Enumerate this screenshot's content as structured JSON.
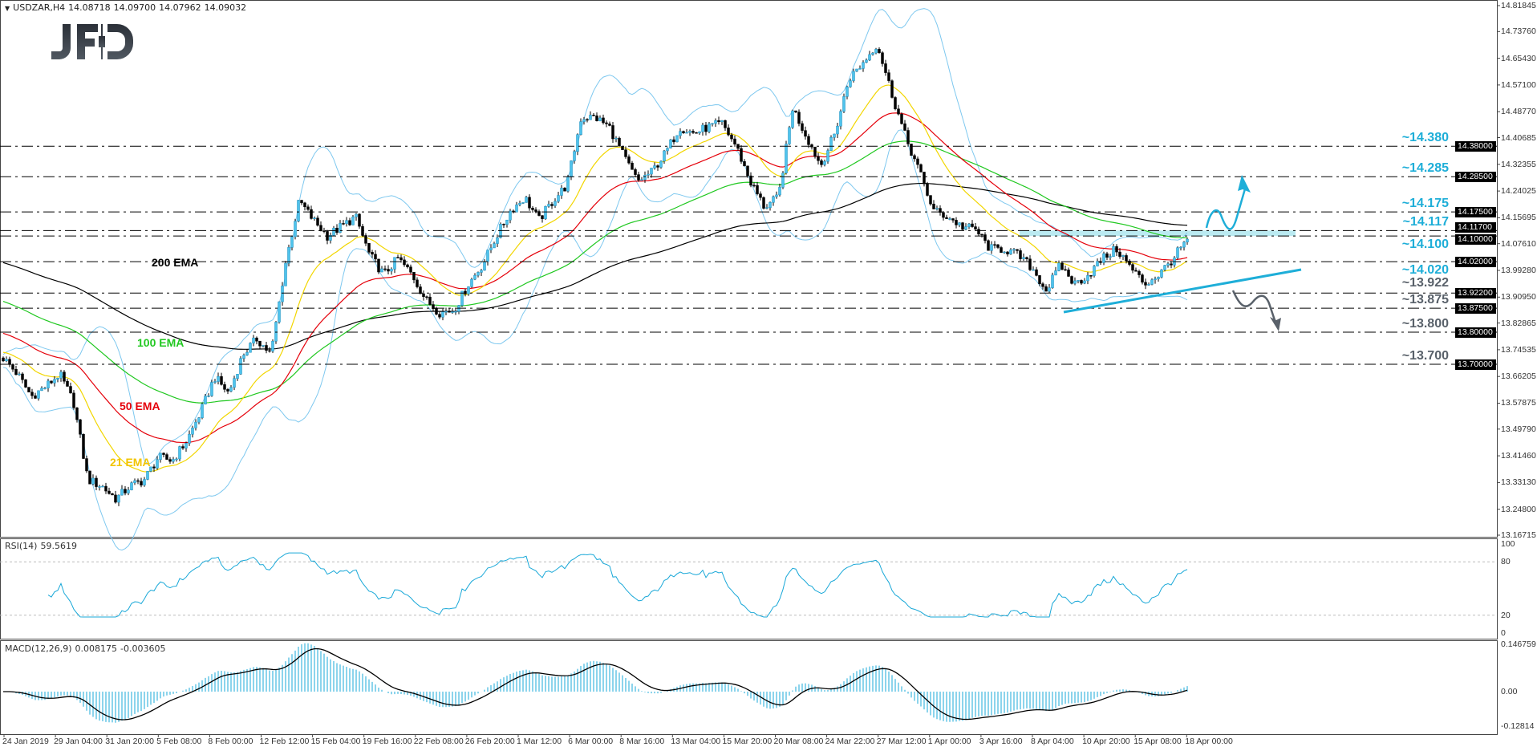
{
  "header": {
    "symbol": "USDZAR,H4",
    "open": "14.08718",
    "high": "14.09700",
    "low": "14.07962",
    "close": "14.09032"
  },
  "logo": {
    "text": "JFD"
  },
  "colors": {
    "bull": "#4fc3ec",
    "bear": "#000000",
    "ema21": "#f2d600",
    "ema50": "#e5000a",
    "ema100": "#20c820",
    "ema200": "#000000",
    "bollinger": "#7ec8ef",
    "level_up": "#1eaed8",
    "level_down": "#59616a",
    "zone": "#b2e8ef",
    "rsi": "#19a8d8",
    "macd_hist": "#19a8d8",
    "macd_signal": "#000000"
  },
  "chart_data": [
    {
      "type": "candlestick",
      "title": "USDZAR,H4",
      "ylim": [
        13.16715,
        14.81845
      ],
      "y_ticks": [
        "14.81845",
        "14.73760",
        "14.65430",
        "14.57100",
        "14.48770",
        "14.40685",
        "14.32355",
        "14.24025",
        "14.15695",
        "14.07610",
        "13.99280",
        "13.90950",
        "13.82865",
        "13.74535",
        "13.66205",
        "13.57875",
        "13.49790",
        "13.41460",
        "13.33130",
        "13.24800",
        "13.16715"
      ],
      "x_ticks": [
        "24 Jan 2019",
        "29 Jan 04:00",
        "31 Jan 20:00",
        "5 Feb 08:00",
        "8 Feb 00:00",
        "12 Feb 12:00",
        "15 Feb 04:00",
        "19 Feb 16:00",
        "22 Feb 08:00",
        "26 Feb 20:00",
        "1 Mar 12:00",
        "6 Mar 00:00",
        "8 Mar 16:00",
        "13 Mar 04:00",
        "15 Mar 20:00",
        "20 Mar 08:00",
        "24 Mar 22:00",
        "27 Mar 12:00",
        "1 Apr 00:00",
        "3 Apr 16:00",
        "8 Apr 04:00",
        "10 Apr 20:00",
        "15 Apr 08:00",
        "18 Apr 00:00"
      ],
      "approx_close_path": [
        13.72,
        13.67,
        13.6,
        13.63,
        13.67,
        13.58,
        13.34,
        13.32,
        13.28,
        13.32,
        13.34,
        13.41,
        13.4,
        13.46,
        13.55,
        13.66,
        13.61,
        13.73,
        13.78,
        13.73,
        14.01,
        14.21,
        14.15,
        14.1,
        14.13,
        14.16,
        14.04,
        13.98,
        14.03,
        13.98,
        13.9,
        13.86,
        13.87,
        13.95,
        14.01,
        14.1,
        14.18,
        14.22,
        14.15,
        14.21,
        14.26,
        14.47,
        14.47,
        14.44,
        14.35,
        14.27,
        14.3,
        14.36,
        14.44,
        14.42,
        14.44,
        14.45,
        14.38,
        14.27,
        14.19,
        14.22,
        14.5,
        14.41,
        14.32,
        14.42,
        14.59,
        14.64,
        14.7,
        14.55,
        14.41,
        14.3,
        14.18,
        14.16,
        14.13,
        14.12,
        14.06,
        14.06,
        14.04,
        14.0,
        13.93,
        14.01,
        13.95,
        13.98,
        14.03,
        14.06,
        14.0,
        13.95,
        13.98,
        14.03,
        14.09
      ],
      "ema_start": {
        "ema21": 13.74,
        "ema50": 13.8,
        "ema100": 13.9,
        "ema200": 14.02
      },
      "ema_labels": {
        "ema200": "200 EMA",
        "ema100": "100 EMA",
        "ema50": "50 EMA",
        "ema21": "21 EMA"
      },
      "levels": [
        {
          "value": 14.38,
          "label": "~14.380",
          "tag": "14.38000",
          "dir": "up"
        },
        {
          "value": 14.285,
          "label": "~14.285",
          "tag": "14.28500",
          "dir": "up"
        },
        {
          "value": 14.175,
          "label": "~14.175",
          "tag": "14.17500",
          "dir": "up"
        },
        {
          "value": 14.117,
          "label": "~14.117",
          "tag": "14.11700",
          "dir": "up"
        },
        {
          "value": 14.1,
          "label": "~14.100",
          "tag": "14.10000",
          "dir": "up"
        },
        {
          "value": 14.02,
          "label": "~14.020",
          "tag": "14.02000",
          "dir": "up"
        },
        {
          "value": 13.922,
          "label": "~13.922",
          "tag": "13.92200",
          "dir": "down"
        },
        {
          "value": 13.875,
          "label": "~13.875",
          "tag": "13.87500",
          "dir": "down"
        },
        {
          "value": 13.8,
          "label": "~13.800",
          "tag": "13.80000",
          "dir": "down"
        },
        {
          "value": 13.7,
          "label": "~13.700",
          "tag": "13.70000",
          "dir": "down"
        }
      ],
      "zone": [
        14.1,
        14.117
      ],
      "current_price": "14.09032"
    },
    {
      "type": "line",
      "title": "RSI(14) 59.5619",
      "name": "RSI(14)",
      "value": "59.5619",
      "ylim": [
        0,
        100
      ],
      "y_ticks": [
        "100",
        "80",
        "20",
        "0"
      ]
    },
    {
      "type": "bar",
      "title": "MACD(12,26,9) 0.008175 -0.003605",
      "name": "MACD(12,26,9)",
      "main": "0.008175",
      "signal": "-0.003605",
      "ylim": [
        -0.12814,
        0.146759
      ],
      "y_ticks": [
        "0.146759",
        "0.00",
        "-0.12814"
      ]
    }
  ]
}
